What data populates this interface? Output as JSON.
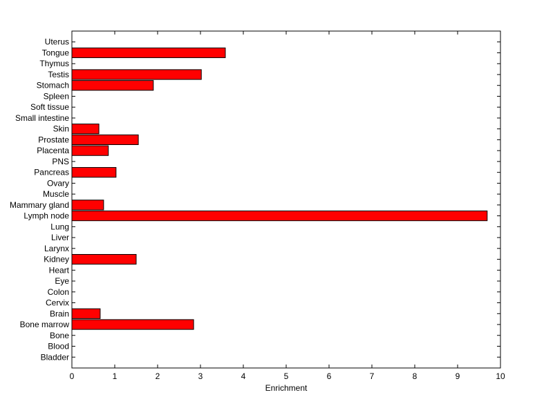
{
  "chart_data": {
    "type": "hbar",
    "xlabel": "Enrichment",
    "categories": [
      "Bladder",
      "Blood",
      "Bone",
      "Bone marrow",
      "Brain",
      "Cervix",
      "Colon",
      "Eye",
      "Heart",
      "Kidney",
      "Larynx",
      "Liver",
      "Lung",
      "Lymph node",
      "Mammary gland",
      "Muscle",
      "Ovary",
      "Pancreas",
      "PNS",
      "Placenta",
      "Prostate",
      "Skin",
      "Small intestine",
      "Soft tissue",
      "Spleen",
      "Stomach",
      "Testis",
      "Thymus",
      "Tongue",
      "Uterus"
    ],
    "values": [
      0,
      0,
      0,
      2.84,
      0.66,
      0,
      0,
      0,
      0,
      1.5,
      0,
      0,
      0,
      9.69,
      0.74,
      0,
      0,
      1.03,
      0,
      0.85,
      1.55,
      0.63,
      0,
      0,
      0,
      1.9,
      3.02,
      0,
      3.58,
      0
    ],
    "color": "#ff0000",
    "xlim": [
      0,
      10
    ],
    "xticks": [
      0,
      1,
      2,
      3,
      4,
      5,
      6,
      7,
      8,
      9,
      10
    ]
  }
}
